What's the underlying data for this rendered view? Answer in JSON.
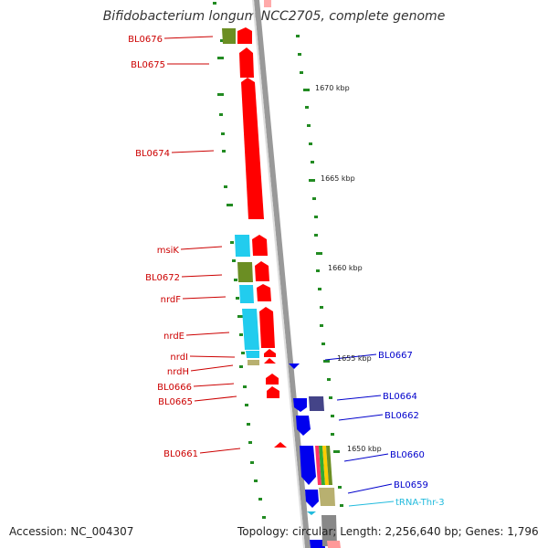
{
  "title": "Bifidobacterium longum NCC2705, complete genome",
  "footer": {
    "accession": "Accession: NC_004307",
    "summary": "Topology: circular; Length: 2,256,640 bp; Genes: 1,796"
  },
  "colors": {
    "reverse_gene": "#ff0000",
    "forward_gene": "#0000ee",
    "reverse_label": "#cc0000",
    "forward_label": "#0000cc",
    "trna_label": "#22bbdd",
    "cog_cyan": "#22ccee",
    "cog_green": "#6b8e23",
    "backbone": "#999999",
    "tick": "#228b22"
  },
  "scale_labels": [
    "1670 kbp",
    "1665 kbp",
    "1660 kbp",
    "1655 kbp",
    "1650 kbp"
  ],
  "left_genes": [
    "BL0676",
    "BL0675",
    "BL0674",
    "msiK",
    "BL0672",
    "nrdF",
    "nrdE",
    "nrdI",
    "nrdH",
    "BL0666",
    "BL0665",
    "BL0661"
  ],
  "right_genes": [
    "BL0667",
    "BL0664",
    "BL0662",
    "BL0660",
    "BL0659",
    "tRNA-Thr-3"
  ]
}
